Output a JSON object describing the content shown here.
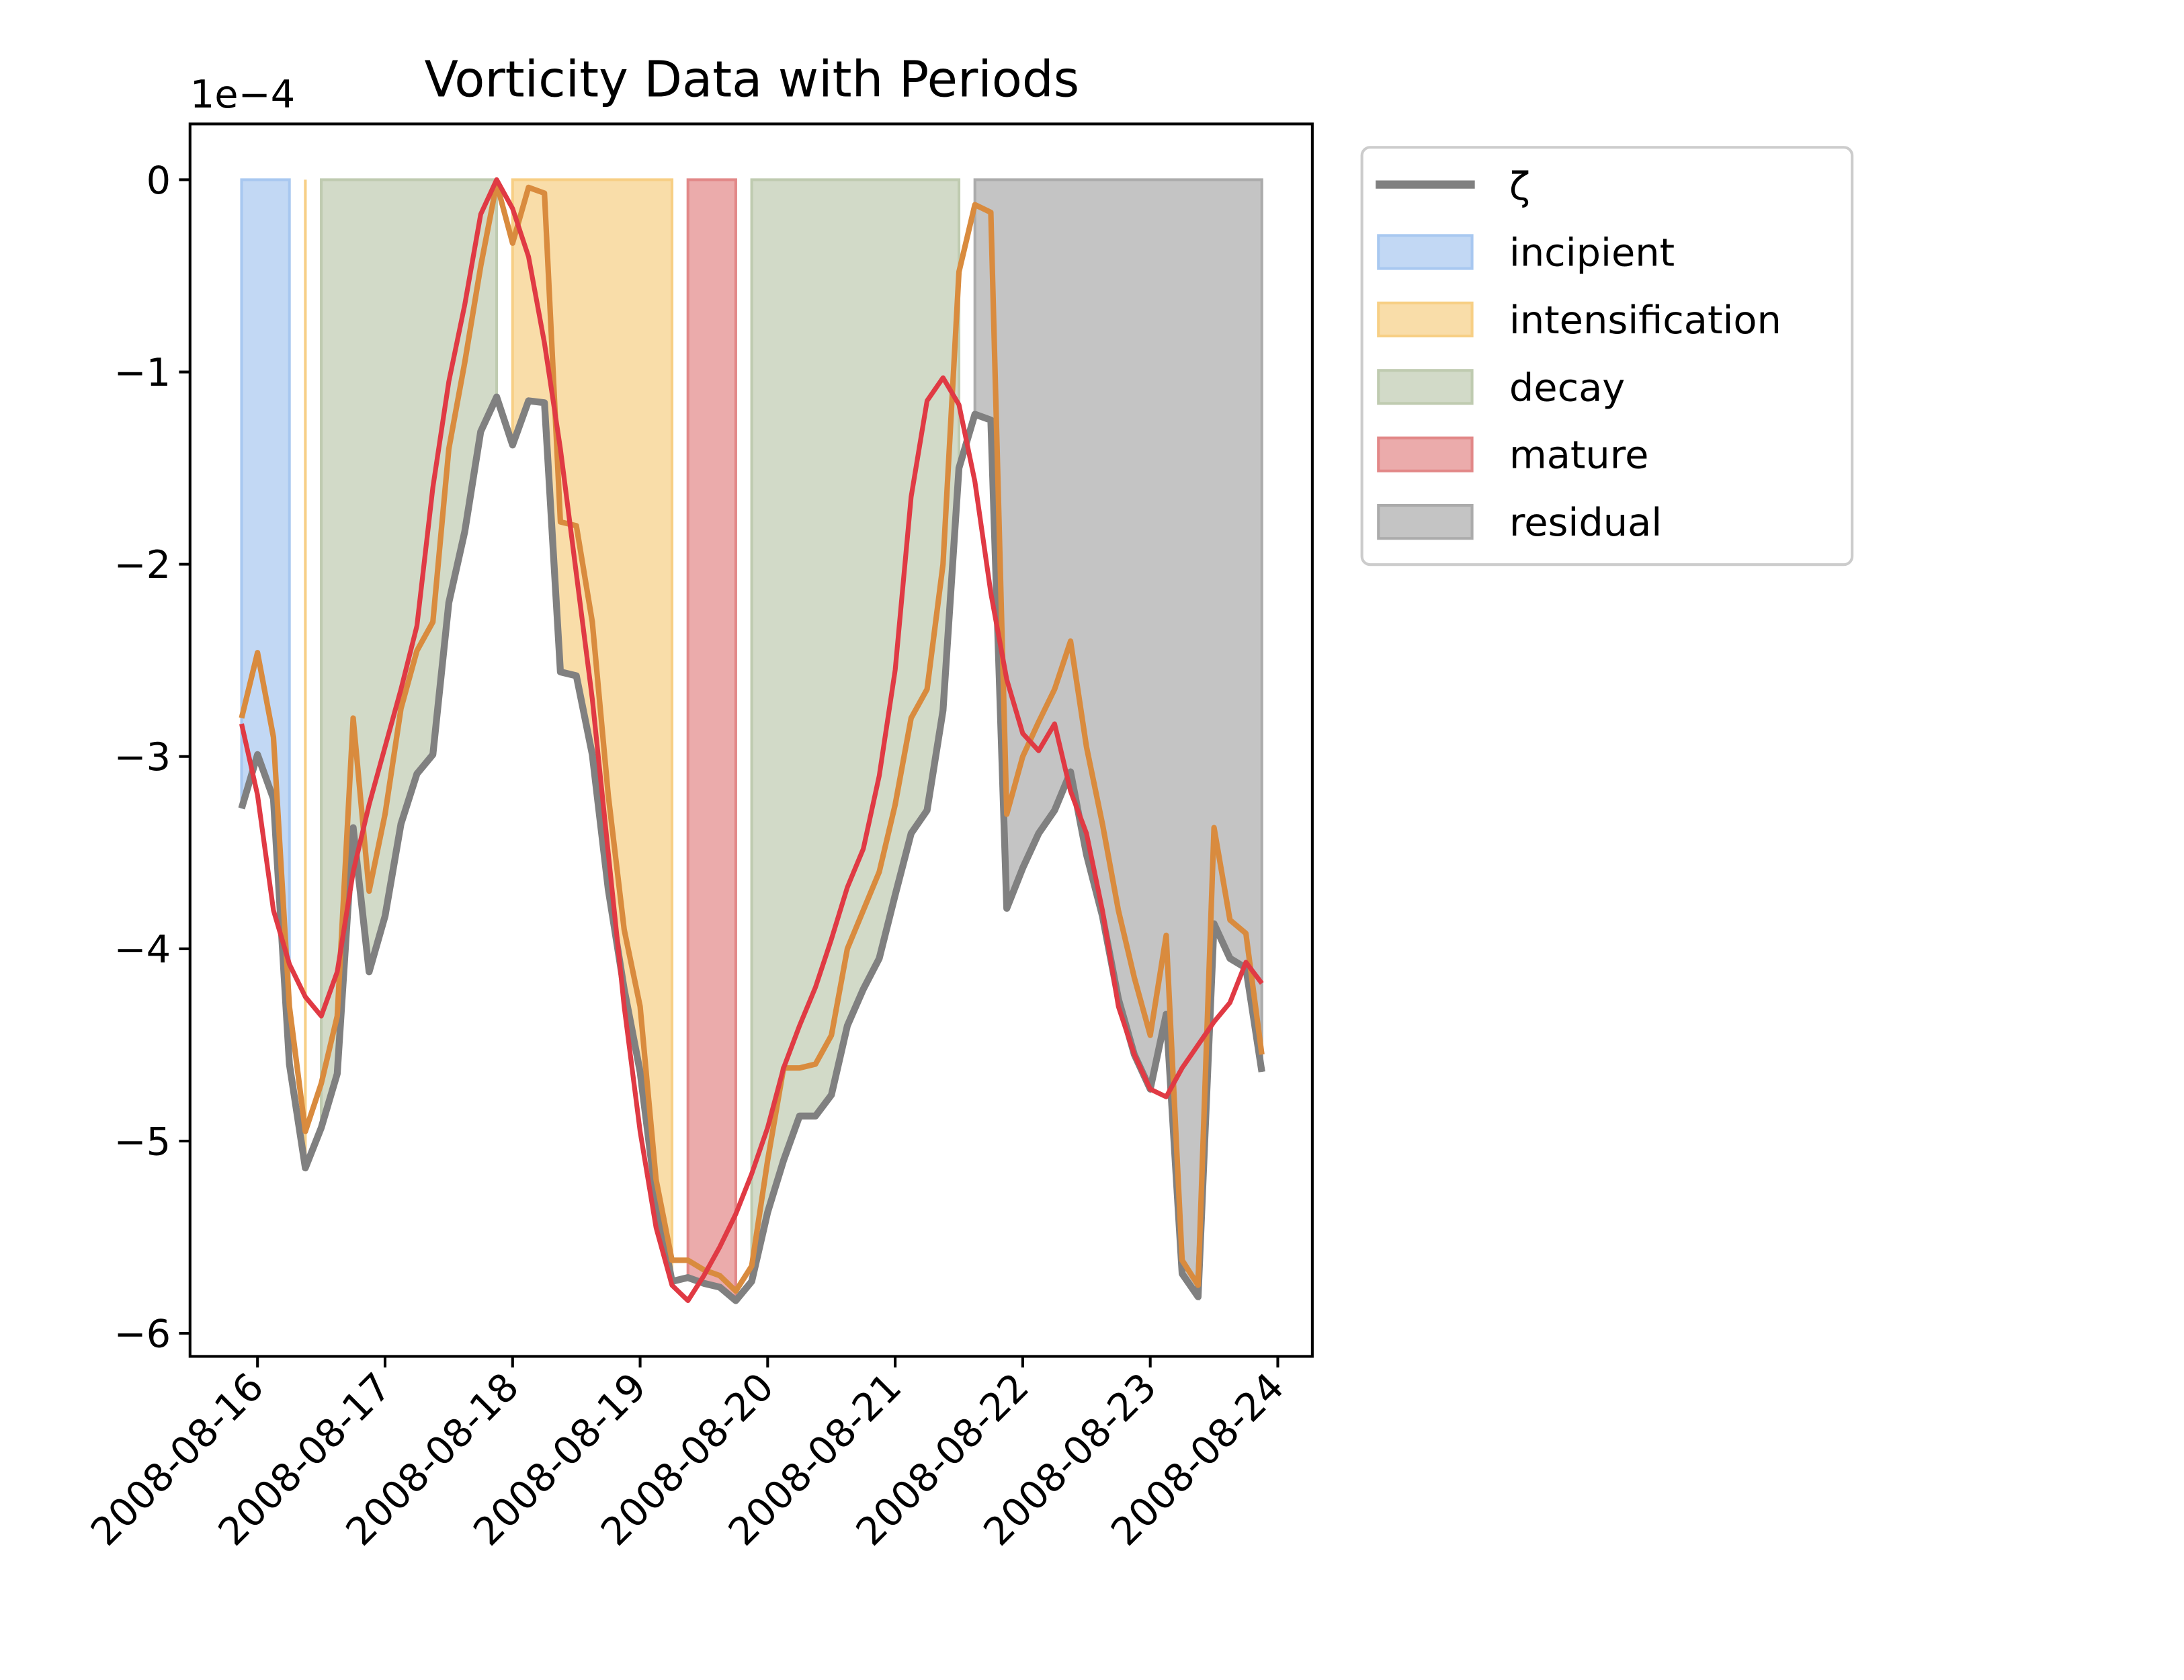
{
  "chart_data": {
    "type": "line",
    "title": "Vorticity Data with Periods",
    "y_offset_label": "1e−4",
    "x": [
      "2008-08-15T21:00",
      "2008-08-16T00:00",
      "2008-08-16T03:00",
      "2008-08-16T06:00",
      "2008-08-16T09:00",
      "2008-08-16T12:00",
      "2008-08-16T15:00",
      "2008-08-16T18:00",
      "2008-08-16T21:00",
      "2008-08-17T00:00",
      "2008-08-17T03:00",
      "2008-08-17T06:00",
      "2008-08-17T09:00",
      "2008-08-17T12:00",
      "2008-08-17T15:00",
      "2008-08-17T18:00",
      "2008-08-17T21:00",
      "2008-08-18T00:00",
      "2008-08-18T03:00",
      "2008-08-18T06:00",
      "2008-08-18T09:00",
      "2008-08-18T12:00",
      "2008-08-18T15:00",
      "2008-08-18T18:00",
      "2008-08-18T21:00",
      "2008-08-19T00:00",
      "2008-08-19T03:00",
      "2008-08-19T06:00",
      "2008-08-19T09:00",
      "2008-08-19T12:00",
      "2008-08-19T15:00",
      "2008-08-19T18:00",
      "2008-08-19T21:00",
      "2008-08-20T00:00",
      "2008-08-20T03:00",
      "2008-08-20T06:00",
      "2008-08-20T09:00",
      "2008-08-20T12:00",
      "2008-08-20T15:00",
      "2008-08-20T18:00",
      "2008-08-20T21:00",
      "2008-08-21T00:00",
      "2008-08-21T03:00",
      "2008-08-21T06:00",
      "2008-08-21T09:00",
      "2008-08-21T12:00",
      "2008-08-21T15:00",
      "2008-08-21T18:00",
      "2008-08-21T21:00",
      "2008-08-22T00:00",
      "2008-08-22T03:00",
      "2008-08-22T06:00",
      "2008-08-22T09:00",
      "2008-08-22T12:00",
      "2008-08-22T15:00",
      "2008-08-22T18:00",
      "2008-08-22T21:00",
      "2008-08-23T00:00",
      "2008-08-23T03:00",
      "2008-08-23T06:00",
      "2008-08-23T09:00",
      "2008-08-23T12:00",
      "2008-08-23T15:00",
      "2008-08-23T18:00",
      "2008-08-23T21:00"
    ],
    "series": [
      {
        "name": "ζ",
        "color": "#808080",
        "width": 5,
        "values": [
          -3.27,
          -2.99,
          -3.22,
          -4.6,
          -5.14,
          -4.93,
          -4.65,
          -3.37,
          -4.12,
          -3.83,
          -3.35,
          -3.09,
          -2.99,
          -2.2,
          -1.83,
          -1.31,
          -1.13,
          -1.38,
          -1.15,
          -1.16,
          -2.56,
          -2.58,
          -2.99,
          -3.69,
          -4.21,
          -4.64,
          -5.3,
          -5.73,
          -5.71,
          -5.74,
          -5.76,
          -5.83,
          -5.73,
          -5.37,
          -5.1,
          -4.87,
          -4.87,
          -4.76,
          -4.4,
          -4.21,
          -4.05,
          -3.72,
          -3.4,
          -3.28,
          -2.76,
          -1.5,
          -1.22,
          -1.25,
          -3.79,
          -3.58,
          -3.4,
          -3.28,
          -3.08,
          -3.51,
          -3.83,
          -4.26,
          -4.55,
          -4.73,
          -4.34,
          -5.69,
          -5.81,
          -3.87,
          -4.05,
          -4.1,
          -4.64
        ]
      },
      {
        "color": "#d98b3e",
        "width": 4,
        "values": [
          -2.8,
          -2.46,
          -2.9,
          -4.3,
          -4.95,
          -4.7,
          -4.35,
          -2.8,
          -3.7,
          -3.3,
          -2.75,
          -2.45,
          -2.3,
          -1.4,
          -0.95,
          -0.45,
          -0.02,
          -0.33,
          -0.04,
          -0.07,
          -1.78,
          -1.8,
          -2.3,
          -3.2,
          -3.9,
          -4.3,
          -5.2,
          -5.62,
          -5.62,
          -5.67,
          -5.7,
          -5.78,
          -5.65,
          -5.1,
          -4.62,
          -4.62,
          -4.6,
          -4.45,
          -4.0,
          -3.8,
          -3.6,
          -3.25,
          -2.8,
          -2.65,
          -2.0,
          -0.48,
          -0.13,
          -0.17,
          -3.3,
          -3.0,
          -2.82,
          -2.65,
          -2.4,
          -2.95,
          -3.35,
          -3.8,
          -4.15,
          -4.45,
          -3.93,
          -5.62,
          -5.75,
          -3.37,
          -3.85,
          -3.92,
          -4.55
        ]
      },
      {
        "color": "#e03a44",
        "width": 3.5,
        "values": [
          -2.83,
          -3.2,
          -3.8,
          -4.08,
          -4.25,
          -4.35,
          -4.12,
          -3.6,
          -3.25,
          -2.95,
          -2.65,
          -2.32,
          -1.6,
          -1.05,
          -0.65,
          -0.18,
          0,
          -0.15,
          -0.4,
          -0.85,
          -1.4,
          -2.05,
          -2.7,
          -3.5,
          -4.3,
          -4.95,
          -5.45,
          -5.75,
          -5.83,
          -5.7,
          -5.55,
          -5.38,
          -5.17,
          -4.93,
          -4.62,
          -4.4,
          -4.2,
          -3.95,
          -3.68,
          -3.48,
          -3.1,
          -2.55,
          -1.65,
          -1.15,
          -1.03,
          -1.17,
          -1.57,
          -2.15,
          -2.6,
          -2.88,
          -2.97,
          -2.83,
          -3.18,
          -3.4,
          -3.8,
          -4.3,
          -4.55,
          -4.73,
          -4.77,
          -4.62,
          -4.5,
          -4.38,
          -4.28,
          -4.07,
          -4.18
        ]
      }
    ],
    "periods": [
      {
        "name": "incipient",
        "color": "#a8c8f0",
        "start": "2008-08-15T21:00",
        "end": "2008-08-16T06:00"
      },
      {
        "name": "intensification",
        "color": "#f7cf85",
        "start": "2008-08-16T09:00",
        "end": "2008-08-16T09:00"
      },
      {
        "name": "decay",
        "color": "#bfcbb0",
        "start": "2008-08-16T12:00",
        "end": "2008-08-17T21:00"
      },
      {
        "name": "intensification",
        "color": "#f7cf85",
        "start": "2008-08-18T00:00",
        "end": "2008-08-19T06:00"
      },
      {
        "name": "mature",
        "color": "#e28888",
        "start": "2008-08-19T09:00",
        "end": "2008-08-19T18:00"
      },
      {
        "name": "decay",
        "color": "#bfcbb0",
        "start": "2008-08-19T21:00",
        "end": "2008-08-21T12:00"
      },
      {
        "name": "residual",
        "color": "#ababab",
        "start": "2008-08-21T15:00",
        "end": "2008-08-23T21:00"
      }
    ],
    "legend_entries": [
      "incipient",
      "intensification",
      "decay",
      "mature",
      "residual"
    ],
    "legend": "outside-upper-right",
    "xlim": [
      "2008-08-15T11:18",
      "2008-08-24T06:30"
    ],
    "xticks": [
      "2008-08-16",
      "2008-08-17",
      "2008-08-18",
      "2008-08-19",
      "2008-08-20",
      "2008-08-21",
      "2008-08-22",
      "2008-08-23",
      "2008-08-24"
    ],
    "ylim": [
      -6.12,
      0.29
    ],
    "yticks": [
      0,
      {
        "value": -1,
        "label": "−1"
      },
      {
        "value": -2,
        "label": "−2"
      },
      {
        "value": -3,
        "label": "−3"
      },
      {
        "value": -4,
        "label": "−4"
      },
      {
        "value": -5,
        "label": "−5"
      },
      {
        "value": -6,
        "label": "−6"
      }
    ]
  }
}
